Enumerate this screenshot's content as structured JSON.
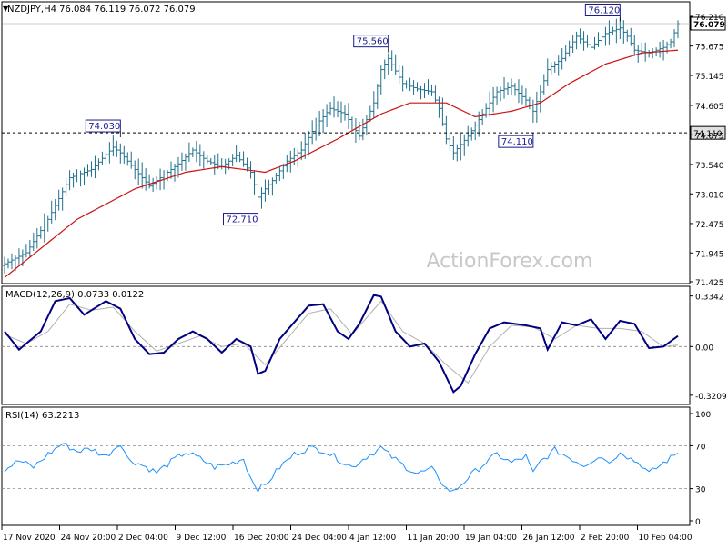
{
  "chart_data": {
    "type": "line",
    "symbol_label": "NZDJPY,H4  76.084 76.119 76.072 76.079",
    "watermark": "ActionForex.com",
    "x_tick_labels": [
      "17 Nov 2020",
      "24 Nov 20:00",
      "2 Dec 04:00",
      "9 Dec 12:00",
      "16 Dec 20:00",
      "24 Dec 04:00",
      "4 Jan 12:00",
      "11 Jan 20:00",
      "19 Jan 04:00",
      "26 Jan 12:00",
      "2 Feb 20:00",
      "10 Feb 04:00"
    ],
    "price_panel": {
      "y_ticks": [
        76.21,
        75.675,
        75.145,
        74.605,
        74.075,
        73.54,
        73.01,
        72.475,
        71.945,
        71.425
      ],
      "ylim": [
        71.425,
        76.21
      ],
      "current_price": "76.079",
      "current_price_value": 76.079,
      "horizontal_level": 74.11,
      "horizontal_level_label": "74.110",
      "annotations": [
        {
          "label": "74.030",
          "value": 74.03,
          "bar": 32
        },
        {
          "label": "72.710",
          "value": 72.71,
          "bar": 70
        },
        {
          "label": "75.560",
          "value": 75.56,
          "bar": 106
        },
        {
          "label": "74.110",
          "value": 74.11,
          "bar": 146
        },
        {
          "label": "76.120",
          "value": 76.12,
          "bar": 170
        }
      ],
      "close_anchors": [
        [
          0,
          71.75
        ],
        [
          6,
          71.95
        ],
        [
          12,
          72.55
        ],
        [
          18,
          73.3
        ],
        [
          24,
          73.45
        ],
        [
          30,
          73.85
        ],
        [
          32,
          73.75
        ],
        [
          36,
          73.45
        ],
        [
          40,
          73.15
        ],
        [
          44,
          73.35
        ],
        [
          48,
          73.55
        ],
        [
          52,
          73.8
        ],
        [
          56,
          73.6
        ],
        [
          60,
          73.5
        ],
        [
          64,
          73.7
        ],
        [
          68,
          73.4
        ],
        [
          70,
          72.95
        ],
        [
          74,
          73.25
        ],
        [
          78,
          73.6
        ],
        [
          82,
          73.8
        ],
        [
          86,
          74.25
        ],
        [
          90,
          74.55
        ],
        [
          94,
          74.45
        ],
        [
          98,
          74.05
        ],
        [
          102,
          74.65
        ],
        [
          104,
          75.25
        ],
        [
          106,
          75.45
        ],
        [
          110,
          75.0
        ],
        [
          114,
          74.9
        ],
        [
          118,
          74.85
        ],
        [
          120,
          74.55
        ],
        [
          122,
          74.0
        ],
        [
          124,
          73.75
        ],
        [
          128,
          74.05
        ],
        [
          132,
          74.45
        ],
        [
          136,
          74.85
        ],
        [
          140,
          74.95
        ],
        [
          144,
          74.7
        ],
        [
          146,
          74.5
        ],
        [
          148,
          74.85
        ],
        [
          150,
          75.25
        ],
        [
          154,
          75.45
        ],
        [
          158,
          75.85
        ],
        [
          162,
          75.65
        ],
        [
          166,
          75.9
        ],
        [
          170,
          76.0
        ],
        [
          172,
          75.85
        ],
        [
          174,
          75.6
        ],
        [
          178,
          75.55
        ],
        [
          182,
          75.65
        ],
        [
          184,
          75.75
        ],
        [
          186,
          76.079
        ]
      ],
      "ma_anchors": [
        [
          0,
          71.5
        ],
        [
          20,
          72.55
        ],
        [
          36,
          73.1
        ],
        [
          50,
          73.4
        ],
        [
          60,
          73.5
        ],
        [
          72,
          73.4
        ],
        [
          80,
          73.6
        ],
        [
          92,
          74.0
        ],
        [
          104,
          74.45
        ],
        [
          112,
          74.65
        ],
        [
          122,
          74.65
        ],
        [
          130,
          74.4
        ],
        [
          140,
          74.5
        ],
        [
          148,
          74.65
        ],
        [
          156,
          75.0
        ],
        [
          166,
          75.35
        ],
        [
          176,
          75.55
        ],
        [
          186,
          75.6
        ]
      ]
    },
    "macd_panel": {
      "label": "MACD(12,26,9) 0.0733 0.0122",
      "y_ticks": [
        0.3342,
        0.0,
        -0.3209
      ],
      "y_tick_labels": [
        "0.3342",
        "0.00",
        "-0.3209"
      ],
      "ylim": [
        -0.37,
        0.38
      ],
      "macd_anchors": [
        [
          0,
          0.1
        ],
        [
          4,
          -0.02
        ],
        [
          10,
          0.1
        ],
        [
          14,
          0.3
        ],
        [
          18,
          0.32
        ],
        [
          22,
          0.21
        ],
        [
          28,
          0.3
        ],
        [
          32,
          0.25
        ],
        [
          36,
          0.05
        ],
        [
          40,
          -0.05
        ],
        [
          44,
          -0.04
        ],
        [
          48,
          0.05
        ],
        [
          52,
          0.1
        ],
        [
          56,
          0.05
        ],
        [
          60,
          -0.04
        ],
        [
          64,
          0.05
        ],
        [
          68,
          0.0
        ],
        [
          70,
          -0.18
        ],
        [
          72,
          -0.16
        ],
        [
          76,
          0.05
        ],
        [
          80,
          0.16
        ],
        [
          84,
          0.27
        ],
        [
          88,
          0.28
        ],
        [
          92,
          0.1
        ],
        [
          95,
          0.05
        ],
        [
          98,
          0.15
        ],
        [
          102,
          0.34
        ],
        [
          104,
          0.33
        ],
        [
          108,
          0.1
        ],
        [
          112,
          0.0
        ],
        [
          116,
          0.02
        ],
        [
          120,
          -0.1
        ],
        [
          124,
          -0.3
        ],
        [
          126,
          -0.26
        ],
        [
          130,
          -0.05
        ],
        [
          134,
          0.12
        ],
        [
          138,
          0.16
        ],
        [
          144,
          0.14
        ],
        [
          148,
          0.12
        ],
        [
          150,
          -0.02
        ],
        [
          154,
          0.16
        ],
        [
          158,
          0.14
        ],
        [
          162,
          0.18
        ],
        [
          166,
          0.05
        ],
        [
          170,
          0.17
        ],
        [
          174,
          0.15
        ],
        [
          178,
          -0.01
        ],
        [
          182,
          0.0
        ],
        [
          186,
          0.07
        ]
      ],
      "signal_anchors": [
        [
          0,
          0.08
        ],
        [
          6,
          0.02
        ],
        [
          12,
          0.1
        ],
        [
          18,
          0.28
        ],
        [
          24,
          0.24
        ],
        [
          30,
          0.26
        ],
        [
          36,
          0.1
        ],
        [
          42,
          -0.03
        ],
        [
          48,
          0.02
        ],
        [
          54,
          0.07
        ],
        [
          60,
          0.0
        ],
        [
          66,
          0.02
        ],
        [
          72,
          -0.12
        ],
        [
          78,
          0.05
        ],
        [
          84,
          0.22
        ],
        [
          90,
          0.25
        ],
        [
          96,
          0.08
        ],
        [
          104,
          0.3
        ],
        [
          110,
          0.1
        ],
        [
          116,
          0.02
        ],
        [
          122,
          -0.12
        ],
        [
          128,
          -0.24
        ],
        [
          134,
          0.0
        ],
        [
          140,
          0.14
        ],
        [
          146,
          0.13
        ],
        [
          152,
          0.05
        ],
        [
          158,
          0.14
        ],
        [
          164,
          0.12
        ],
        [
          170,
          0.12
        ],
        [
          176,
          0.1
        ],
        [
          182,
          0.0
        ],
        [
          186,
          0.01
        ]
      ]
    },
    "rsi_panel": {
      "label": "RSI(14) 63.2213",
      "y_ticks": [
        100,
        70,
        30,
        0
      ],
      "y_tick_labels": [
        "100",
        "70",
        "30",
        "0"
      ],
      "levels": [
        70,
        30
      ],
      "ylim": [
        0,
        100
      ],
      "rsi_anchors": [
        [
          0,
          48
        ],
        [
          4,
          56
        ],
        [
          8,
          50
        ],
        [
          12,
          62
        ],
        [
          16,
          72
        ],
        [
          20,
          65
        ],
        [
          24,
          67
        ],
        [
          28,
          60
        ],
        [
          32,
          73
        ],
        [
          34,
          58
        ],
        [
          38,
          52
        ],
        [
          42,
          45
        ],
        [
          46,
          55
        ],
        [
          50,
          64
        ],
        [
          54,
          58
        ],
        [
          58,
          50
        ],
        [
          62,
          53
        ],
        [
          66,
          58
        ],
        [
          68,
          40
        ],
        [
          70,
          30
        ],
        [
          72,
          33
        ],
        [
          76,
          50
        ],
        [
          80,
          62
        ],
        [
          84,
          68
        ],
        [
          88,
          66
        ],
        [
          92,
          58
        ],
        [
          96,
          50
        ],
        [
          100,
          60
        ],
        [
          104,
          68
        ],
        [
          106,
          62
        ],
        [
          110,
          52
        ],
        [
          114,
          44
        ],
        [
          118,
          48
        ],
        [
          120,
          40
        ],
        [
          122,
          30
        ],
        [
          124,
          27
        ],
        [
          128,
          40
        ],
        [
          132,
          52
        ],
        [
          136,
          62
        ],
        [
          140,
          54
        ],
        [
          144,
          60
        ],
        [
          146,
          44
        ],
        [
          148,
          55
        ],
        [
          152,
          66
        ],
        [
          156,
          59
        ],
        [
          160,
          52
        ],
        [
          164,
          60
        ],
        [
          168,
          55
        ],
        [
          170,
          66
        ],
        [
          172,
          60
        ],
        [
          176,
          52
        ],
        [
          178,
          44
        ],
        [
          182,
          54
        ],
        [
          186,
          63.22
        ]
      ]
    },
    "colors": {
      "bars": "#1f6f8b",
      "ma": "#cc1010",
      "macd": "#000080",
      "signal": "#b0b0b0",
      "rsi": "#1e90ff",
      "grid": "#000000",
      "watermark": "#c8c8c8"
    }
  }
}
